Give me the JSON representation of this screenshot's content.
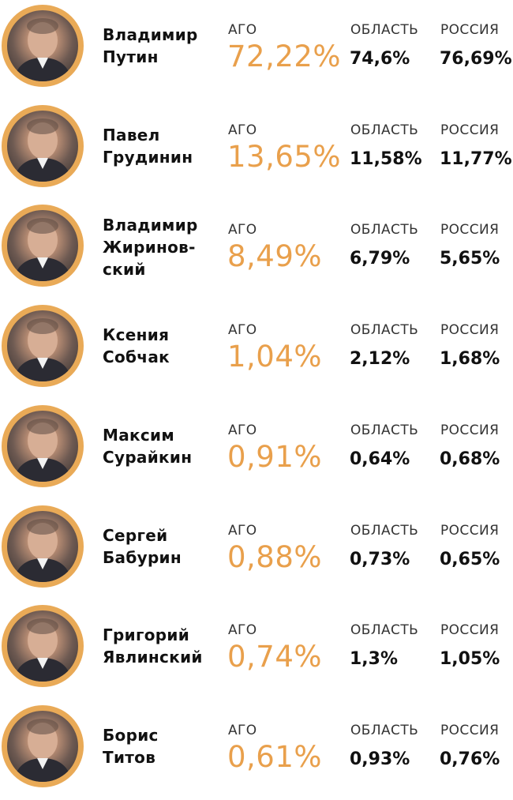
{
  "chart_data": {
    "type": "table",
    "columns": [
      "АГО",
      "ОБЛАСТЬ",
      "РОССИЯ"
    ],
    "rows": [
      {
        "name_lines": [
          "Владимир",
          "Путин"
        ],
        "ago": "72,22%",
        "oblast": "74,6%",
        "russia": "76,69%"
      },
      {
        "name_lines": [
          "Павел",
          "Грудинин"
        ],
        "ago": "13,65%",
        "oblast": "11,58%",
        "russia": "11,77%"
      },
      {
        "name_lines": [
          "Владимир",
          "Жиринов-",
          "ский"
        ],
        "ago": "8,49%",
        "oblast": "6,79%",
        "russia": "5,65%"
      },
      {
        "name_lines": [
          "Ксения",
          "Собчак"
        ],
        "ago": "1,04%",
        "oblast": "2,12%",
        "russia": "1,68%"
      },
      {
        "name_lines": [
          "Максим",
          "Сурайкин"
        ],
        "ago": "0,91%",
        "oblast": "0,64%",
        "russia": "0,68%"
      },
      {
        "name_lines": [
          "Сергей",
          "Бабурин"
        ],
        "ago": "0,88%",
        "oblast": "0,73%",
        "russia": "0,65%"
      },
      {
        "name_lines": [
          "Григорий",
          "Явлинский"
        ],
        "ago": "0,74%",
        "oblast": "1,3%",
        "russia": "1,05%"
      },
      {
        "name_lines": [
          "Борис",
          "Титов"
        ],
        "ago": "0,61%",
        "oblast": "0,93%",
        "russia": "0,76%"
      }
    ]
  },
  "colors": {
    "accent": "#e9a04c",
    "ring": "#e9aa57",
    "text": "#111111"
  },
  "icons": {
    "avatar": "person-photo"
  }
}
